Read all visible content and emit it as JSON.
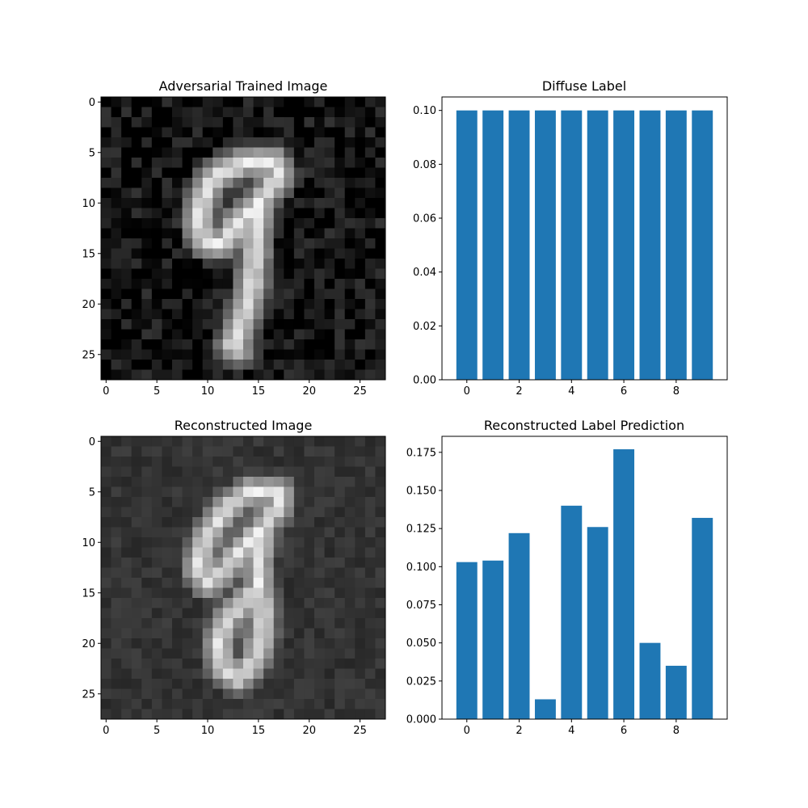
{
  "chart_data": [
    {
      "type": "heatmap",
      "title": "Adversarial Trained Image",
      "colormap": "gray",
      "xlim": [
        -0.5,
        27.5
      ],
      "ylim": [
        27.5,
        -0.5
      ],
      "xticks": [
        0,
        5,
        10,
        15,
        20,
        25
      ],
      "yticks": [
        0,
        5,
        10,
        15,
        20,
        25
      ],
      "digit_shape": "9",
      "background_level": 0.06,
      "noise_level": 0.14,
      "peak_level": 0.98
    },
    {
      "type": "bar",
      "title": "Diffuse Label",
      "categories": [
        0,
        1,
        2,
        3,
        4,
        5,
        6,
        7,
        8,
        9
      ],
      "values": [
        0.1,
        0.1,
        0.1,
        0.1,
        0.1,
        0.1,
        0.1,
        0.1,
        0.1,
        0.1
      ],
      "xlim": [
        -0.95,
        9.95
      ],
      "ylim": [
        0,
        0.105
      ],
      "xticks": [
        0,
        2,
        4,
        6,
        8
      ],
      "yticks": [
        "0.00",
        "0.02",
        "0.04",
        "0.06",
        "0.08",
        "0.10"
      ],
      "color": "#1f77b4"
    },
    {
      "type": "heatmap",
      "title": "Reconstructed Image",
      "colormap": "gray",
      "xlim": [
        -0.5,
        27.5
      ],
      "ylim": [
        27.5,
        -0.5
      ],
      "xticks": [
        0,
        5,
        10,
        15,
        20,
        25
      ],
      "yticks": [
        0,
        5,
        10,
        15,
        20,
        25
      ],
      "digit_shape": "8",
      "background_level": 0.2,
      "noise_level": 0.05,
      "peak_level": 0.96
    },
    {
      "type": "bar",
      "title": "Reconstructed Label Prediction",
      "categories": [
        0,
        1,
        2,
        3,
        4,
        5,
        6,
        7,
        8,
        9
      ],
      "values": [
        0.103,
        0.104,
        0.122,
        0.013,
        0.14,
        0.126,
        0.177,
        0.05,
        0.035,
        0.132
      ],
      "xlim": [
        -0.95,
        9.95
      ],
      "ylim": [
        0,
        0.1855
      ],
      "xticks": [
        0,
        2,
        4,
        6,
        8
      ],
      "yticks": [
        "0.000",
        "0.025",
        "0.050",
        "0.075",
        "0.100",
        "0.125",
        "0.150",
        "0.175"
      ],
      "color": "#1f77b4"
    }
  ]
}
